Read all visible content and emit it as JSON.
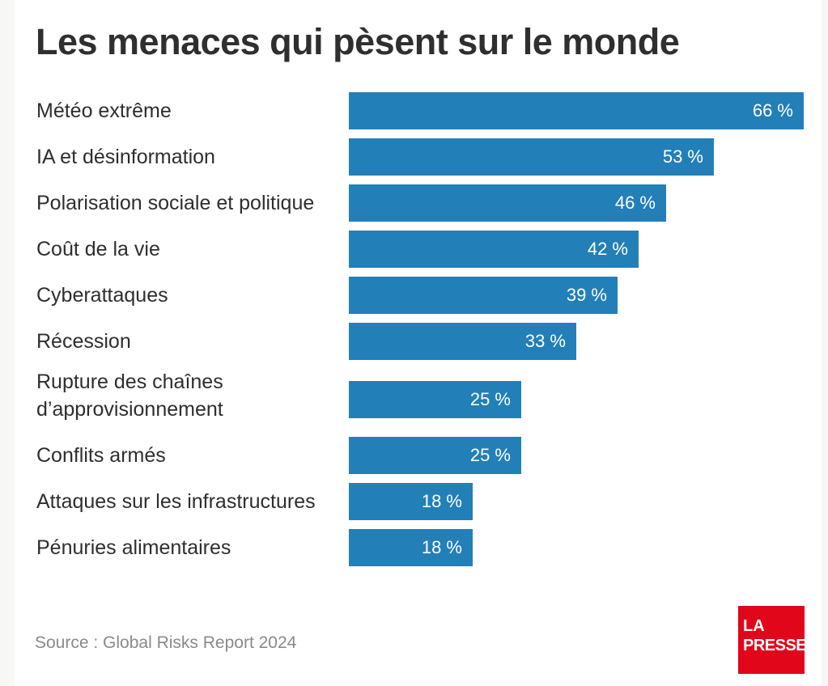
{
  "chart_data": {
    "type": "bar",
    "orientation": "horizontal",
    "title": "Les menaces qui pèsent sur le monde",
    "categories": [
      "Météo extrême",
      "IA et désinformation",
      "Polarisation sociale et politique",
      "Coût de la vie",
      "Cyberattaques",
      "Récession",
      "Rupture des chaînes d’approvisionnement",
      "Conflits armés",
      "Attaques sur les infrastructures",
      "Pénuries alimentaires"
    ],
    "category_lines": [
      [
        "Météo extrême"
      ],
      [
        "IA et désinformation"
      ],
      [
        "Polarisation sociale et politique"
      ],
      [
        "Coût de la vie"
      ],
      [
        "Cyberattaques"
      ],
      [
        "Récession"
      ],
      [
        "Rupture des chaînes",
        "d’approvisionnement"
      ],
      [
        "Conflits armés"
      ],
      [
        "Attaques sur les infrastructures"
      ],
      [
        "Pénuries alimentaires"
      ]
    ],
    "values": [
      66,
      53,
      46,
      42,
      39,
      33,
      25,
      25,
      18,
      18
    ],
    "value_labels": [
      "66 %",
      "53 %",
      "46 %",
      "42 %",
      "39 %",
      "33 %",
      "25 %",
      "25 %",
      "18 %",
      "18 %"
    ],
    "unit": "%",
    "xlabel": "",
    "ylabel": "",
    "xlim": [
      0,
      66
    ],
    "grid": false,
    "legend": "none",
    "bar_color": "#237fb8",
    "source": "Source : Global Risks Report 2024"
  },
  "branding": {
    "logo_line1": "LA",
    "logo_line2": "PRESSE",
    "logo_color": "#e2061b"
  }
}
